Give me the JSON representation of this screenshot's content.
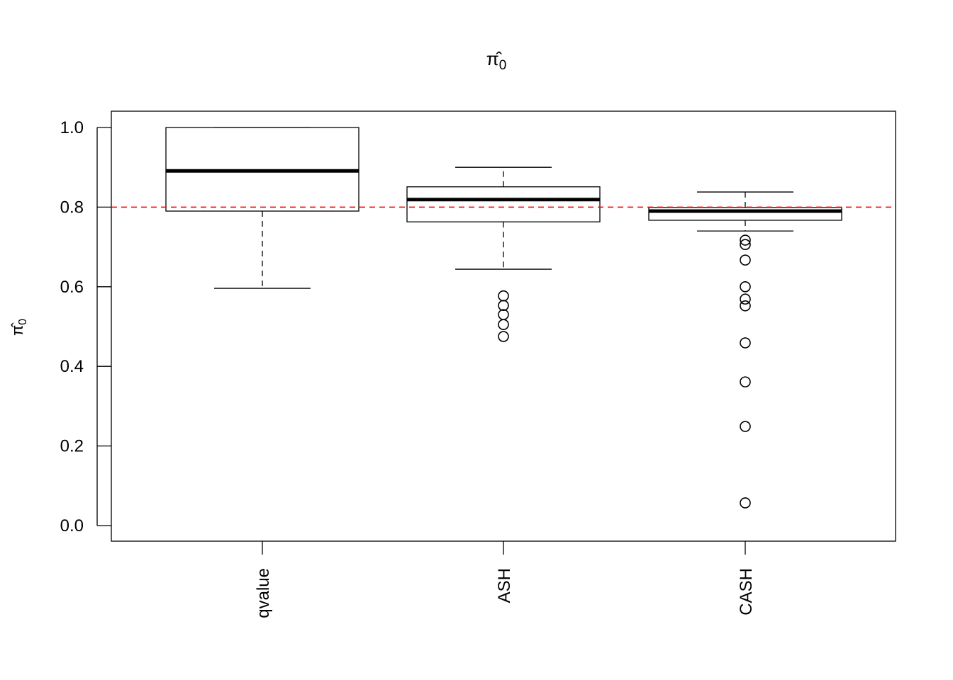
{
  "chart_data": {
    "type": "boxplot",
    "title": {
      "symbol": "π̂",
      "subscript": "0"
    },
    "ylabel": {
      "symbol": "π̂",
      "subscript": "0"
    },
    "xlabel": "",
    "ylim": [
      0,
      1
    ],
    "yticks": [
      0.0,
      0.2,
      0.4,
      0.6,
      0.8,
      1.0
    ],
    "ytick_labels": [
      "0.0",
      "0.2",
      "0.4",
      "0.6",
      "0.8",
      "1.0"
    ],
    "categories": [
      "qvalue",
      "ASH",
      "CASH"
    ],
    "boxes": [
      {
        "name": "qvalue",
        "whisker_low": 0.596,
        "q1": 0.79,
        "median": 0.891,
        "q3": 1.0,
        "whisker_high": 1.0,
        "outliers": []
      },
      {
        "name": "ASH",
        "whisker_low": 0.644,
        "q1": 0.763,
        "median": 0.819,
        "q3": 0.851,
        "whisker_high": 0.9,
        "outliers": [
          0.577,
          0.553,
          0.53,
          0.505,
          0.475
        ]
      },
      {
        "name": "CASH",
        "whisker_low": 0.74,
        "q1": 0.767,
        "median": 0.79,
        "q3": 0.799,
        "whisker_high": 0.838,
        "outliers": [
          0.717,
          0.706,
          0.667,
          0.6,
          0.569,
          0.552,
          0.459,
          0.361,
          0.249,
          0.057
        ]
      }
    ],
    "reference_line": {
      "value": 0.8,
      "color": "#ff0000",
      "style": "dashed"
    },
    "grid": false
  }
}
